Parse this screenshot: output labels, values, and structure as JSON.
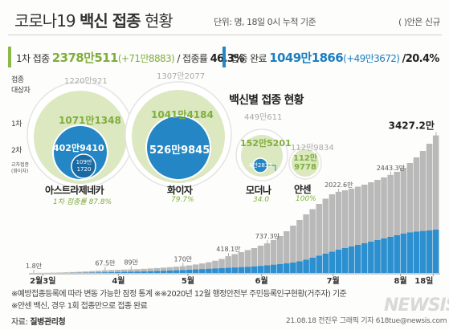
{
  "header": {
    "title_a": "코로나19 ",
    "title_b": "백신 접종",
    "title_c": " 현황",
    "unit_note": "단위: 명, 18일 0시 누적 기준",
    "paren_note": "( )안은 신규"
  },
  "summary": {
    "first_label": "1차 접종",
    "first_value": "2378만511",
    "first_new": "(+71만8883)",
    "first_rate_label": "/ 접종률",
    "first_rate": "46.3%",
    "complete_label": "접종 완료",
    "complete_value": "1049만1866",
    "complete_new": "(+49만3672)",
    "complete_rate": "/20.4%"
  },
  "bubbles": {
    "row_target_a": "접종",
    "row_target_b": "대상자",
    "row_first": "1차",
    "row_second": "2차",
    "row_cross_a": "교차접종",
    "row_cross_b": "(화이자)",
    "section_title": "백신별 접종 현황",
    "vaccines": [
      {
        "name": "아스트라제네카",
        "target": "1220만921",
        "first": "1071만1348",
        "second": "402만9410",
        "cross_a": "109만",
        "cross_b": "1720",
        "rate": "1차 접종률 87.8%"
      },
      {
        "name": "화이자",
        "target": "1307만2077",
        "first": "1041만4184",
        "second": "526만9845",
        "rate": "79.7%"
      },
      {
        "name": "모더나",
        "target": "449만611",
        "first": "152만5201",
        "second": "6만2833",
        "rate": "34.0"
      },
      {
        "name": "얀센",
        "target": "112만9834",
        "first_a": "112만",
        "first_b": "9778",
        "rate": "100%"
      }
    ]
  },
  "chart_data": {
    "type": "bar",
    "title": "",
    "xlabel": "",
    "ylabel": "",
    "x_ticks": [
      "2월3일",
      "4월",
      "5월",
      "6월",
      "7월",
      "8월",
      "18일"
    ],
    "annotations": [
      {
        "label": "1.8만",
        "value": 1.8
      },
      {
        "label": "67.5만",
        "value": 67.5
      },
      {
        "label": "89만",
        "value": 89
      },
      {
        "label": "170만",
        "value": 170
      },
      {
        "label": "418.1만",
        "value": 418.1
      },
      {
        "label": "737.3만",
        "value": 737.3
      },
      {
        "label": "2022.6만",
        "value": 2022.6
      },
      {
        "label": "2443.3만",
        "value": 2443.3
      },
      {
        "label": "3427.2만",
        "value": 3427.2
      }
    ],
    "series": [
      {
        "values": [
          1.8,
          3,
          5,
          8,
          12,
          17,
          23,
          30,
          38,
          47,
          57,
          67.5,
          73,
          79,
          85,
          89,
          95,
          103,
          112,
          122,
          133,
          145,
          157,
          170,
          190,
          212,
          238,
          268,
          305,
          350,
          418.1,
          470,
          520,
          570,
          620,
          680,
          737.3,
          820,
          920,
          1040,
          1180,
          1320,
          1460,
          1590,
          1720,
          1850,
          1960,
          2022.6,
          2060,
          2100,
          2150,
          2200,
          2260,
          2320,
          2380,
          2443.3,
          2520,
          2620,
          2740,
          2880,
          3040,
          3220,
          3427.2
        ]
      },
      {
        "values": [
          0,
          0,
          0,
          0,
          0,
          0,
          2,
          4,
          6,
          9,
          12,
          15,
          18,
          22,
          26,
          30,
          34,
          38,
          42,
          48,
          54,
          60,
          66,
          72,
          80,
          88,
          96,
          104,
          112,
          120,
          128,
          136,
          144,
          152,
          162,
          175,
          190,
          205,
          220,
          240,
          260,
          290,
          330,
          380,
          430,
          480,
          530,
          580,
          620,
          660,
          700,
          740,
          780,
          820,
          860,
          900,
          940,
          980,
          1010,
          1030,
          1045,
          1060,
          1080
        ]
      }
    ],
    "ylim": [
      0,
      3600
    ]
  },
  "notes": {
    "line1": "※예방접종등록에 따라 변동 가능한 잠정 통계 ※※2020년 12월 행정안전부 주민등록인구현황(거주자) 기준",
    "line2": "※얀센 백신, 경우 1회 접종만으로 접종 완료",
    "source_label": "자료: ",
    "source": "질병관리청",
    "credit": "21.08.18 전진우 그래픽 기자 618tue@newsis.com",
    "logo": "NEWSIS"
  },
  "colors": {
    "green": "#8db84a",
    "light_green": "#dbe8c0",
    "blue": "#2486c4",
    "gray_bar": "#b9b9b9",
    "blue_bar": "#2b8fd0"
  }
}
